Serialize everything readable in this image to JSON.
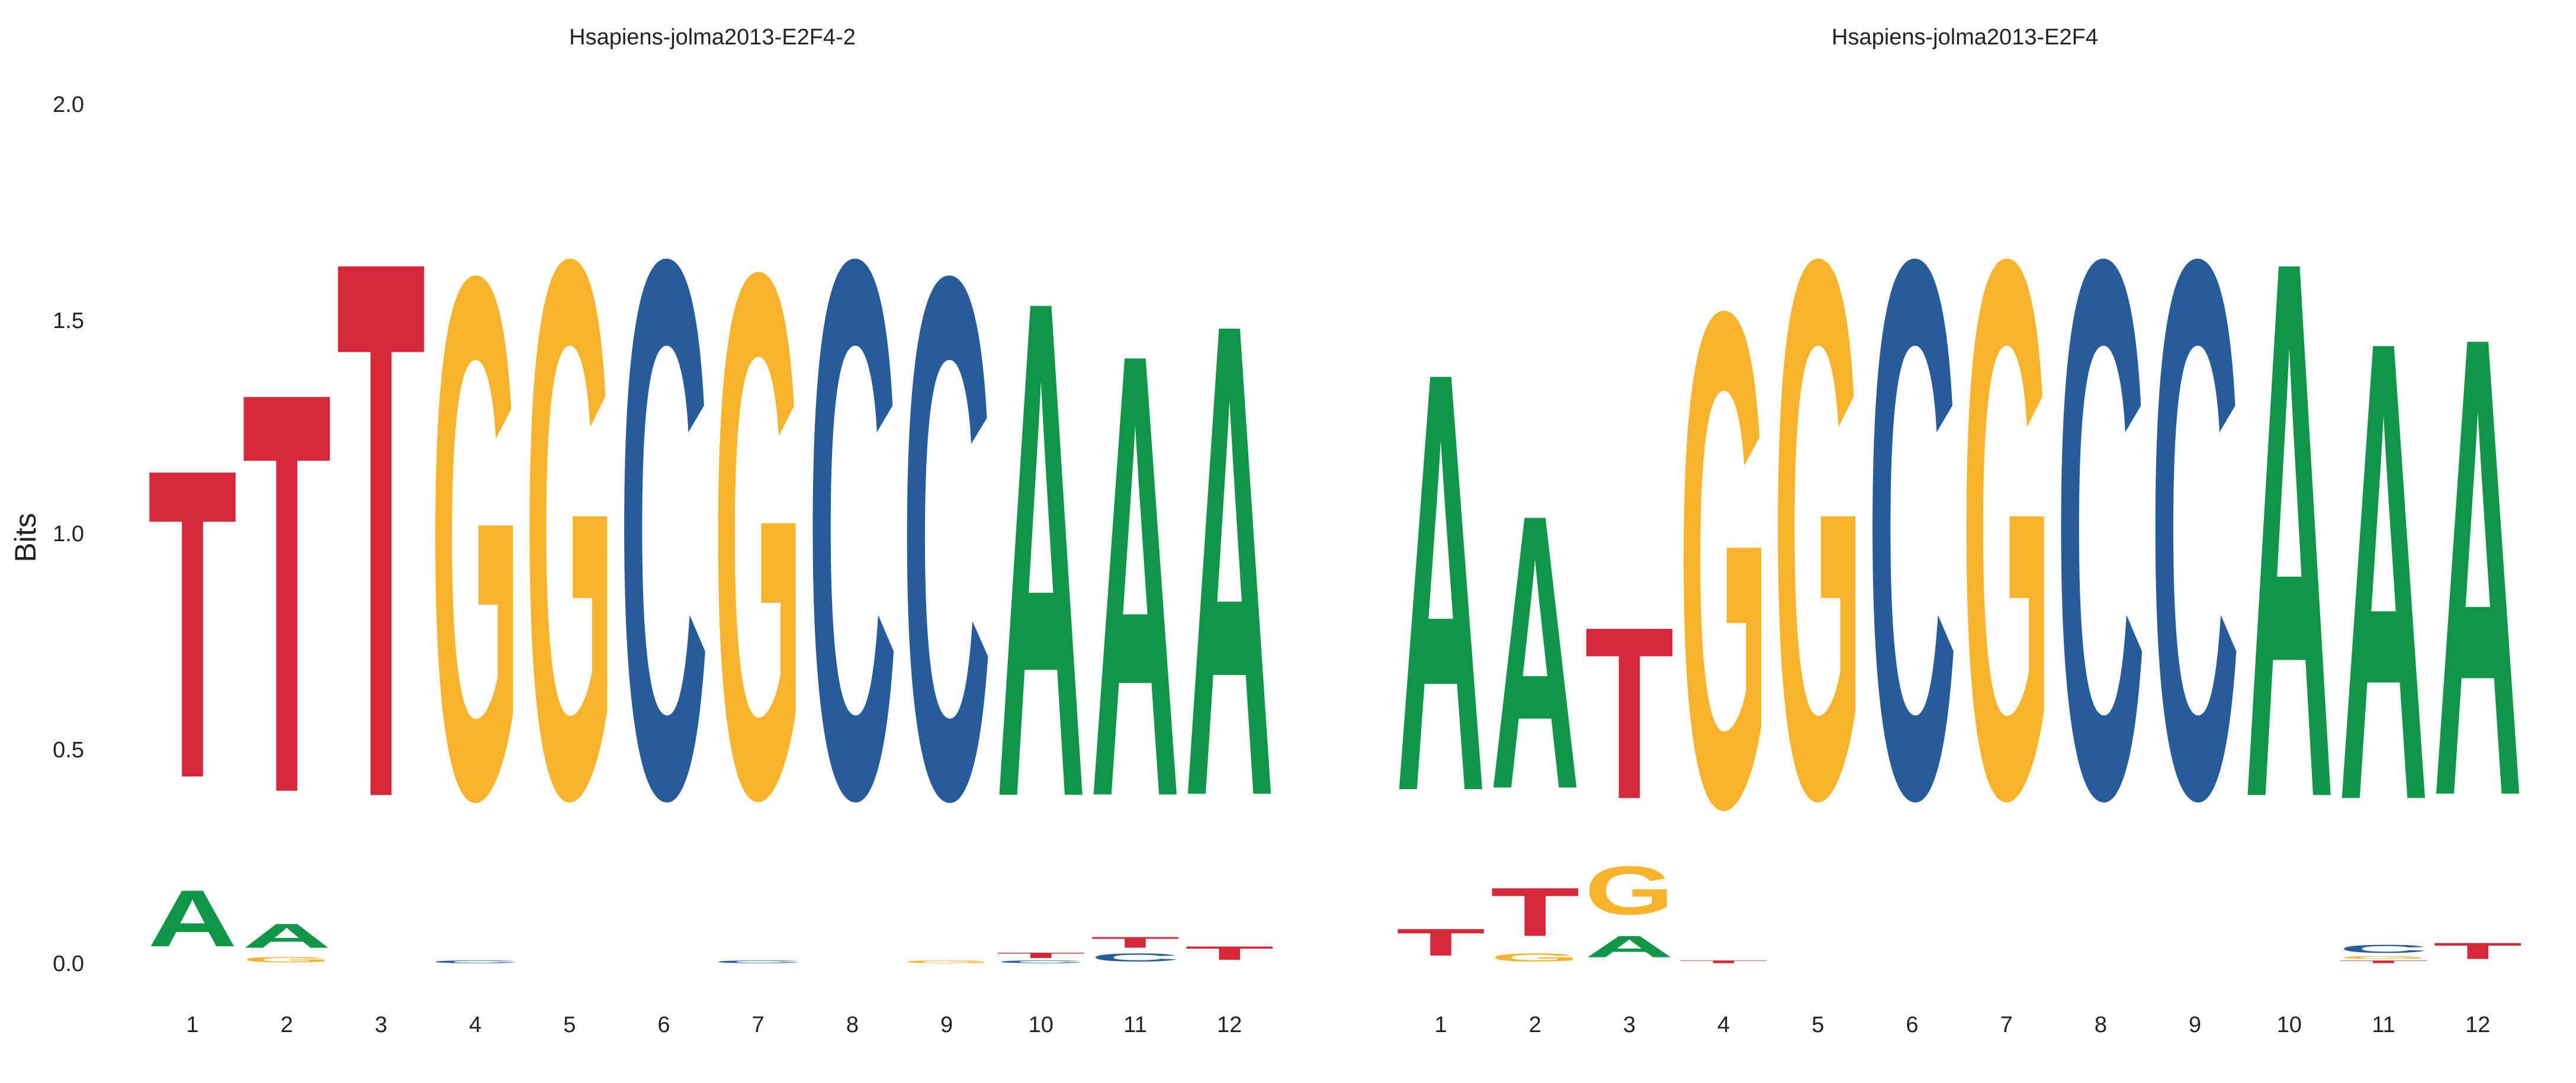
{
  "colors": {
    "A": "#109648",
    "C": "#255C99",
    "G": "#F7B32B",
    "T": "#D62839"
  },
  "chart_data": [
    {
      "type": "sequence-logo",
      "title": "Hsapiens-jolma2013-E2F4-2",
      "ylabel": "Bits",
      "ylim": [
        0,
        2
      ],
      "yticks": [
        "0.0",
        "0.5",
        "1.0",
        "1.5",
        "2.0"
      ],
      "yticks_values": [
        0,
        0.5,
        1,
        1.5,
        2
      ],
      "grid": false,
      "positions": [
        {
          "label": "1",
          "stack": [
            [
              "A",
              0.21
            ],
            [
              "T",
              1.15
            ]
          ]
        },
        {
          "label": "2",
          "stack": [
            [
              "G",
              0.02
            ],
            [
              "A",
              0.09
            ],
            [
              "T",
              1.49
            ]
          ]
        },
        {
          "label": "3",
          "stack": [
            [
              "T",
              2.0
            ]
          ]
        },
        {
          "label": "4",
          "stack": [
            [
              "C",
              0.01
            ],
            [
              "G",
              1.94
            ]
          ]
        },
        {
          "label": "5",
          "stack": [
            [
              "G",
              2.0
            ]
          ]
        },
        {
          "label": "6",
          "stack": [
            [
              "C",
              2.0
            ]
          ]
        },
        {
          "label": "7",
          "stack": [
            [
              "C",
              0.01
            ],
            [
              "G",
              1.95
            ]
          ]
        },
        {
          "label": "8",
          "stack": [
            [
              "C",
              2.0
            ]
          ]
        },
        {
          "label": "9",
          "stack": [
            [
              "G",
              0.01
            ],
            [
              "C",
              1.94
            ]
          ]
        },
        {
          "label": "10",
          "stack": [
            [
              "C",
              0.01
            ],
            [
              "T",
              0.02
            ],
            [
              "A",
              1.85
            ]
          ]
        },
        {
          "label": "11",
          "stack": [
            [
              "C",
              0.03
            ],
            [
              "T",
              0.04
            ],
            [
              "A",
              1.65
            ]
          ]
        },
        {
          "label": "12",
          "stack": [
            [
              "T",
              0.05
            ],
            [
              "A",
              1.76
            ]
          ]
        }
      ]
    },
    {
      "type": "sequence-logo",
      "title": "Hsapiens-jolma2013-E2F4",
      "ylabel": "",
      "ylim": [
        0,
        2
      ],
      "grid": false,
      "positions": [
        {
          "label": "1",
          "stack": [
            [
              "T",
              0.1
            ],
            [
              "A",
              1.56
            ]
          ]
        },
        {
          "label": "2",
          "stack": [
            [
              "G",
              0.03
            ],
            [
              "T",
              0.18
            ],
            [
              "A",
              1.02
            ]
          ]
        },
        {
          "label": "3",
          "stack": [
            [
              "A",
              0.08
            ],
            [
              "G",
              0.18
            ],
            [
              "T",
              0.64
            ]
          ]
        },
        {
          "label": "4",
          "stack": [
            [
              "T",
              0.01
            ],
            [
              "G",
              1.84
            ]
          ]
        },
        {
          "label": "5",
          "stack": [
            [
              "G",
              2.0
            ]
          ]
        },
        {
          "label": "6",
          "stack": [
            [
              "C",
              2.0
            ]
          ]
        },
        {
          "label": "7",
          "stack": [
            [
              "G",
              2.0
            ]
          ]
        },
        {
          "label": "8",
          "stack": [
            [
              "C",
              2.0
            ]
          ]
        },
        {
          "label": "9",
          "stack": [
            [
              "C",
              2.0
            ]
          ]
        },
        {
          "label": "10",
          "stack": [
            [
              "A",
              2.0
            ]
          ]
        },
        {
          "label": "11",
          "stack": [
            [
              "T",
              0.01
            ],
            [
              "G",
              0.01
            ],
            [
              "C",
              0.03
            ],
            [
              "A",
              1.71
            ]
          ]
        },
        {
          "label": "12",
          "stack": [
            [
              "T",
              0.06
            ],
            [
              "A",
              1.71
            ]
          ]
        }
      ]
    }
  ]
}
